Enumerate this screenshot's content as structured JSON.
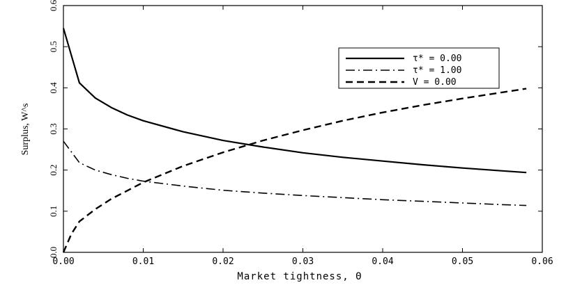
{
  "chart_data": {
    "type": "line",
    "xlabel": "Market tightness, Θ",
    "ylabel": "Surplus, W^s",
    "xlim": [
      0.0,
      0.06
    ],
    "ylim": [
      0.0,
      0.6
    ],
    "x_ticks": [
      0.0,
      0.01,
      0.02,
      0.03,
      0.04,
      0.05,
      0.06
    ],
    "x_tick_labels": [
      "0.00",
      "0.01",
      "0.02",
      "0.03",
      "0.04",
      "0.05",
      "0.06"
    ],
    "y_ticks": [
      0.0,
      0.1,
      0.2,
      0.3,
      0.4,
      0.5,
      0.6
    ],
    "y_tick_labels": [
      "0.0",
      "0.1",
      "0.2",
      "0.3",
      "0.4",
      "0.5",
      "0.6"
    ],
    "grid": false,
    "legend_position": "upper-right",
    "series": [
      {
        "name": "τ* = 0.00",
        "style": "solid",
        "x": [
          0.0,
          0.002,
          0.004,
          0.006,
          0.008,
          0.01,
          0.015,
          0.02,
          0.025,
          0.03,
          0.035,
          0.04,
          0.045,
          0.05,
          0.055,
          0.058
        ],
        "y": [
          0.545,
          0.412,
          0.375,
          0.352,
          0.334,
          0.32,
          0.293,
          0.272,
          0.256,
          0.242,
          0.231,
          0.222,
          0.213,
          0.205,
          0.198,
          0.194
        ]
      },
      {
        "name": "τ* = 1.00",
        "style": "dashdot",
        "x": [
          0.0,
          0.002,
          0.004,
          0.006,
          0.008,
          0.01,
          0.015,
          0.02,
          0.025,
          0.03,
          0.035,
          0.04,
          0.045,
          0.05,
          0.055,
          0.058
        ],
        "y": [
          0.27,
          0.218,
          0.2,
          0.189,
          0.18,
          0.173,
          0.161,
          0.151,
          0.144,
          0.138,
          0.133,
          0.128,
          0.124,
          0.12,
          0.116,
          0.114
        ]
      },
      {
        "name": "V = 0.00",
        "style": "dashed",
        "x": [
          0.0,
          0.001,
          0.002,
          0.004,
          0.006,
          0.008,
          0.01,
          0.015,
          0.02,
          0.025,
          0.03,
          0.035,
          0.04,
          0.045,
          0.05,
          0.055,
          0.058
        ],
        "y": [
          0.0,
          0.045,
          0.075,
          0.105,
          0.13,
          0.15,
          0.17,
          0.21,
          0.243,
          0.272,
          0.297,
          0.32,
          0.34,
          0.358,
          0.374,
          0.389,
          0.398
        ]
      }
    ]
  }
}
